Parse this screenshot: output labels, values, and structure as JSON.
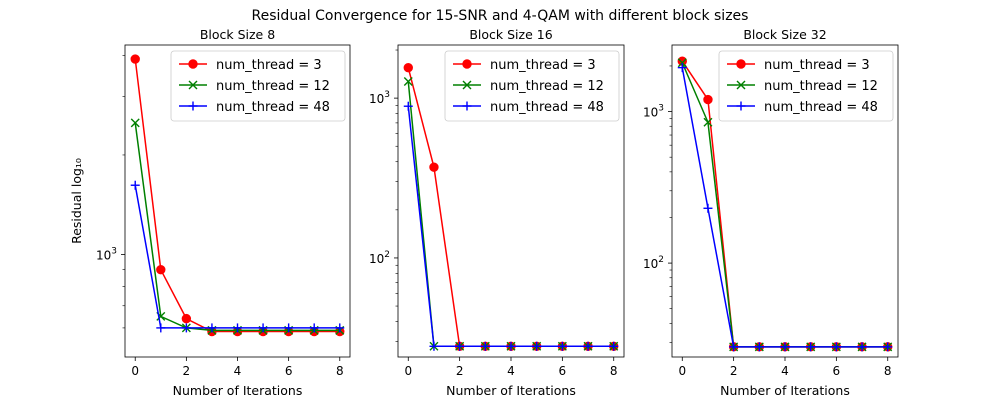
{
  "figure": {
    "suptitle": "Residual Convergence for 15-SNR and 4-QAM with different block sizes"
  },
  "chart_data": [
    {
      "type": "line",
      "title": "Block Size 8",
      "xlabel": "Number of Iterations",
      "ylabel": "Residual log₁₀",
      "yscale": "log",
      "xlim": [
        -0.4,
        8.4
      ],
      "ylim": [
        490,
        4300
      ],
      "x_ticks": [
        0,
        2,
        4,
        6,
        8
      ],
      "y_major_ticks": [
        {
          "value": 1000,
          "base": "10",
          "exp": "3"
        }
      ],
      "y_minor_ticks": [
        600,
        700,
        800,
        900,
        2000,
        3000,
        4000
      ],
      "legend": "top-right",
      "x": [
        0,
        1,
        2,
        3,
        4,
        5,
        6,
        7,
        8
      ],
      "series": [
        {
          "name": "num_thread = 3",
          "color": "#ff0000",
          "marker": "o",
          "values": [
            3900,
            900,
            640,
            585,
            585,
            585,
            585,
            585,
            585
          ]
        },
        {
          "name": "num_thread = 12",
          "color": "#008000",
          "marker": "x",
          "values": [
            2500,
            650,
            600,
            590,
            590,
            590,
            590,
            590,
            590
          ]
        },
        {
          "name": "num_thread = 48",
          "color": "#0000ff",
          "marker": "+",
          "values": [
            1620,
            600,
            600,
            600,
            600,
            600,
            600,
            600,
            600
          ]
        }
      ]
    },
    {
      "type": "line",
      "title": "Block Size 16",
      "xlabel": "Number of Iterations",
      "ylabel": "",
      "yscale": "log",
      "xlim": [
        -0.4,
        8.4
      ],
      "ylim": [
        24,
        2150
      ],
      "x_ticks": [
        0,
        2,
        4,
        6,
        8
      ],
      "y_major_ticks": [
        {
          "value": 100,
          "base": "10",
          "exp": "2"
        },
        {
          "value": 1000,
          "base": "10",
          "exp": "3"
        }
      ],
      "y_minor_ticks": [
        30,
        40,
        50,
        60,
        70,
        80,
        90,
        200,
        300,
        400,
        500,
        600,
        700,
        800,
        900,
        2000
      ],
      "legend": "top-right",
      "x": [
        0,
        1,
        2,
        3,
        4,
        5,
        6,
        7,
        8
      ],
      "series": [
        {
          "name": "num_thread = 3",
          "color": "#ff0000",
          "marker": "o",
          "values": [
            1550,
            370,
            28,
            28,
            28,
            28,
            28,
            28,
            28
          ]
        },
        {
          "name": "num_thread = 12",
          "color": "#008000",
          "marker": "x",
          "values": [
            1270,
            28,
            28,
            28,
            28,
            28,
            28,
            28,
            28
          ]
        },
        {
          "name": "num_thread = 48",
          "color": "#0000ff",
          "marker": "+",
          "values": [
            890,
            28,
            28,
            28,
            28,
            28,
            28,
            28,
            28
          ]
        }
      ]
    },
    {
      "type": "line",
      "title": "Block Size 32",
      "xlabel": "Number of Iterations",
      "ylabel": "",
      "yscale": "log",
      "xlim": [
        -0.4,
        8.4
      ],
      "ylim": [
        24,
        2750
      ],
      "x_ticks": [
        0,
        2,
        4,
        6,
        8
      ],
      "y_major_ticks": [
        {
          "value": 100,
          "base": "10",
          "exp": "2"
        },
        {
          "value": 1000,
          "base": "10",
          "exp": "3"
        }
      ],
      "y_minor_ticks": [
        30,
        40,
        50,
        60,
        70,
        80,
        90,
        200,
        300,
        400,
        500,
        600,
        700,
        800,
        900,
        2000
      ],
      "legend": "top-right",
      "x": [
        0,
        1,
        2,
        3,
        4,
        5,
        6,
        7,
        8
      ],
      "series": [
        {
          "name": "num_thread = 3",
          "color": "#ff0000",
          "marker": "o",
          "values": [
            2150,
            1200,
            28,
            28,
            28,
            28,
            28,
            28,
            28
          ]
        },
        {
          "name": "num_thread = 12",
          "color": "#008000",
          "marker": "x",
          "values": [
            2100,
            850,
            28,
            28,
            28,
            28,
            28,
            28,
            28
          ]
        },
        {
          "name": "num_thread = 48",
          "color": "#0000ff",
          "marker": "+",
          "values": [
            1950,
            230,
            28,
            28,
            28,
            28,
            28,
            28,
            28
          ]
        }
      ]
    }
  ]
}
